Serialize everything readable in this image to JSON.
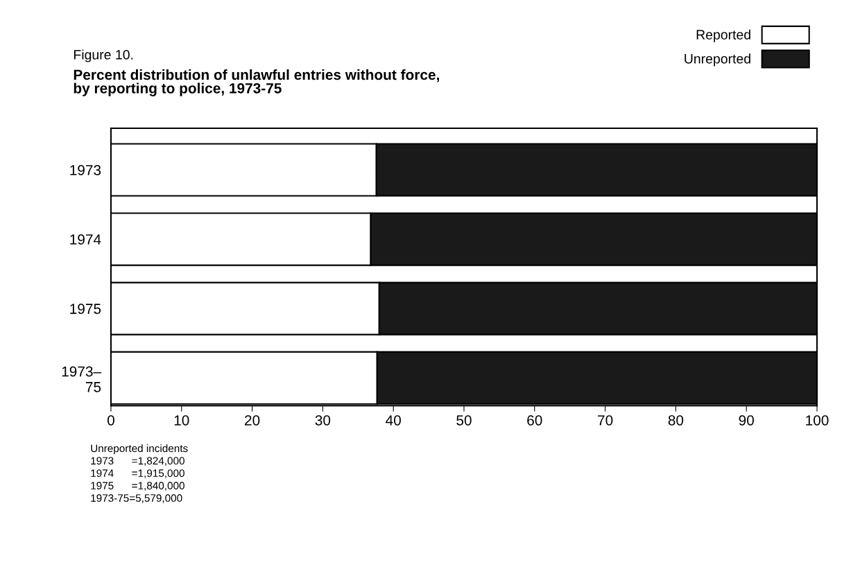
{
  "chart_data": {
    "type": "bar",
    "orientation": "horizontal",
    "stacked": true,
    "title": "Figure 10.",
    "subtitle": "Percent distribution of unlawful entries without force,\nby reporting to police, 1973-75",
    "categories": [
      "1973",
      "1974",
      "1975",
      "1973–\n75"
    ],
    "series": [
      {
        "name": "Reported",
        "color": "#ffffff",
        "values": [
          37.6,
          36.8,
          38.0,
          37.7
        ]
      },
      {
        "name": "Unreported",
        "color": "#1a1a1a",
        "values": [
          62.4,
          63.2,
          62.0,
          62.3
        ]
      }
    ],
    "xlim": [
      0,
      100
    ],
    "xticks": [
      0,
      10,
      20,
      30,
      40,
      50,
      60,
      70,
      80,
      90,
      100
    ],
    "grid": false,
    "legend": "top right",
    "annotations": [
      "Unreported incidents",
      "1973      =1,824,000",
      "1974      =1,915,000",
      "1975      =1,840,000",
      "1973-75=5,579,000"
    ]
  }
}
